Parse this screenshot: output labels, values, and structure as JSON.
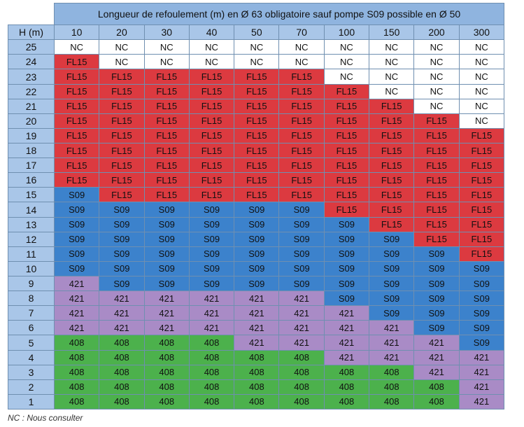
{
  "table": {
    "title": "Longueur de refoulement (m) en Ø 63 obligatoire sauf pompe S09 possible en Ø 50",
    "row_header": "H (m)",
    "columns": [
      "10",
      "20",
      "30",
      "40",
      "50",
      "70",
      "100",
      "150",
      "200",
      "300"
    ],
    "rows": [
      {
        "h": "25",
        "cells": [
          "NC",
          "NC",
          "NC",
          "NC",
          "NC",
          "NC",
          "NC",
          "NC",
          "NC",
          "NC"
        ]
      },
      {
        "h": "24",
        "cells": [
          "FL15",
          "NC",
          "NC",
          "NC",
          "NC",
          "NC",
          "NC",
          "NC",
          "NC",
          "NC"
        ]
      },
      {
        "h": "23",
        "cells": [
          "FL15",
          "FL15",
          "FL15",
          "FL15",
          "FL15",
          "FL15",
          "NC",
          "NC",
          "NC",
          "NC"
        ]
      },
      {
        "h": "22",
        "cells": [
          "FL15",
          "FL15",
          "FL15",
          "FL15",
          "FL15",
          "FL15",
          "FL15",
          "NC",
          "NC",
          "NC"
        ]
      },
      {
        "h": "21",
        "cells": [
          "FL15",
          "FL15",
          "FL15",
          "FL15",
          "FL15",
          "FL15",
          "FL15",
          "FL15",
          "NC",
          "NC"
        ]
      },
      {
        "h": "20",
        "cells": [
          "FL15",
          "FL15",
          "FL15",
          "FL15",
          "FL15",
          "FL15",
          "FL15",
          "FL15",
          "FL15",
          "NC"
        ]
      },
      {
        "h": "19",
        "cells": [
          "FL15",
          "FL15",
          "FL15",
          "FL15",
          "FL15",
          "FL15",
          "FL15",
          "FL15",
          "FL15",
          "FL15"
        ]
      },
      {
        "h": "18",
        "cells": [
          "FL15",
          "FL15",
          "FL15",
          "FL15",
          "FL15",
          "FL15",
          "FL15",
          "FL15",
          "FL15",
          "FL15"
        ]
      },
      {
        "h": "17",
        "cells": [
          "FL15",
          "FL15",
          "FL15",
          "FL15",
          "FL15",
          "FL15",
          "FL15",
          "FL15",
          "FL15",
          "FL15"
        ]
      },
      {
        "h": "16",
        "cells": [
          "FL15",
          "FL15",
          "FL15",
          "FL15",
          "FL15",
          "FL15",
          "FL15",
          "FL15",
          "FL15",
          "FL15"
        ]
      },
      {
        "h": "15",
        "cells": [
          "S09",
          "FL15",
          "FL15",
          "FL15",
          "FL15",
          "FL15",
          "FL15",
          "FL15",
          "FL15",
          "FL15"
        ]
      },
      {
        "h": "14",
        "cells": [
          "S09",
          "S09",
          "S09",
          "S09",
          "S09",
          "S09",
          "FL15",
          "FL15",
          "FL15",
          "FL15"
        ]
      },
      {
        "h": "13",
        "cells": [
          "S09",
          "S09",
          "S09",
          "S09",
          "S09",
          "S09",
          "S09",
          "FL15",
          "FL15",
          "FL15"
        ]
      },
      {
        "h": "12",
        "cells": [
          "S09",
          "S09",
          "S09",
          "S09",
          "S09",
          "S09",
          "S09",
          "S09",
          "FL15",
          "FL15"
        ]
      },
      {
        "h": "11",
        "cells": [
          "S09",
          "S09",
          "S09",
          "S09",
          "S09",
          "S09",
          "S09",
          "S09",
          "S09",
          "FL15"
        ]
      },
      {
        "h": "10",
        "cells": [
          "S09",
          "S09",
          "S09",
          "S09",
          "S09",
          "S09",
          "S09",
          "S09",
          "S09",
          "S09"
        ]
      },
      {
        "h": "9",
        "cells": [
          "421",
          "S09",
          "S09",
          "S09",
          "S09",
          "S09",
          "S09",
          "S09",
          "S09",
          "S09"
        ]
      },
      {
        "h": "8",
        "cells": [
          "421",
          "421",
          "421",
          "421",
          "421",
          "421",
          "S09",
          "S09",
          "S09",
          "S09"
        ]
      },
      {
        "h": "7",
        "cells": [
          "421",
          "421",
          "421",
          "421",
          "421",
          "421",
          "421",
          "S09",
          "S09",
          "S09"
        ]
      },
      {
        "h": "6",
        "cells": [
          "421",
          "421",
          "421",
          "421",
          "421",
          "421",
          "421",
          "421",
          "S09",
          "S09"
        ]
      },
      {
        "h": "5",
        "cells": [
          "408",
          "408",
          "408",
          "408",
          "421",
          "421",
          "421",
          "421",
          "421",
          "S09"
        ]
      },
      {
        "h": "4",
        "cells": [
          "408",
          "408",
          "408",
          "408",
          "408",
          "408",
          "421",
          "421",
          "421",
          "421"
        ]
      },
      {
        "h": "3",
        "cells": [
          "408",
          "408",
          "408",
          "408",
          "408",
          "408",
          "408",
          "408",
          "421",
          "421"
        ]
      },
      {
        "h": "2",
        "cells": [
          "408",
          "408",
          "408",
          "408",
          "408",
          "408",
          "408",
          "408",
          "408",
          "421"
        ]
      },
      {
        "h": "1",
        "cells": [
          "408",
          "408",
          "408",
          "408",
          "408",
          "408",
          "408",
          "408",
          "408",
          "421"
        ]
      }
    ]
  },
  "footnote": "NC : Nous consulter",
  "colors": {
    "NC": "#ffffff",
    "FL15": "#dc3a40",
    "S09": "#3c82cc",
    "421": "#a98bc6",
    "408": "#4cb14c",
    "header": "#a9c6e8",
    "title_bar": "#8fb4df"
  }
}
